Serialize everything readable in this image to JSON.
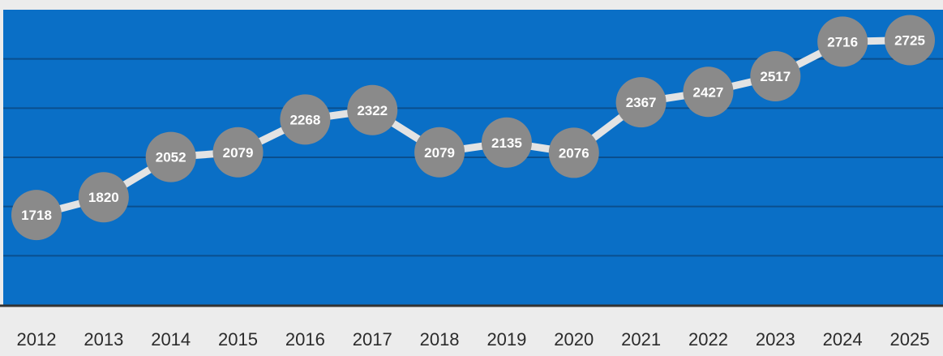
{
  "chart_data": {
    "type": "line",
    "title": "",
    "xlabel": "",
    "ylabel": "",
    "categories": [
      "2012",
      "2013",
      "2014",
      "2015",
      "2016",
      "2017",
      "2018",
      "2019",
      "2020",
      "2021",
      "2022",
      "2023",
      "2024",
      "2025"
    ],
    "series": [
      {
        "values": [
          1718,
          1820,
          2052,
          2079,
          2268,
          2322,
          2079,
          2135,
          2076,
          2367,
          2427,
          2517,
          2716,
          2725
        ]
      }
    ],
    "ylim": [
      1200,
      2900
    ],
    "grid": true,
    "legend": "none",
    "y_tick_labels_shown": false,
    "data_labels_shown": true,
    "colors": {
      "plot_background": "#0a6fc6",
      "gridline": "#0a4f8e",
      "line": "#e3e3e3",
      "marker": "#8a8a8a",
      "marker_text": "#ffffff",
      "axis_line": "#333333",
      "tick_text": "#2b2b2b",
      "page_background": "#ececec"
    }
  }
}
